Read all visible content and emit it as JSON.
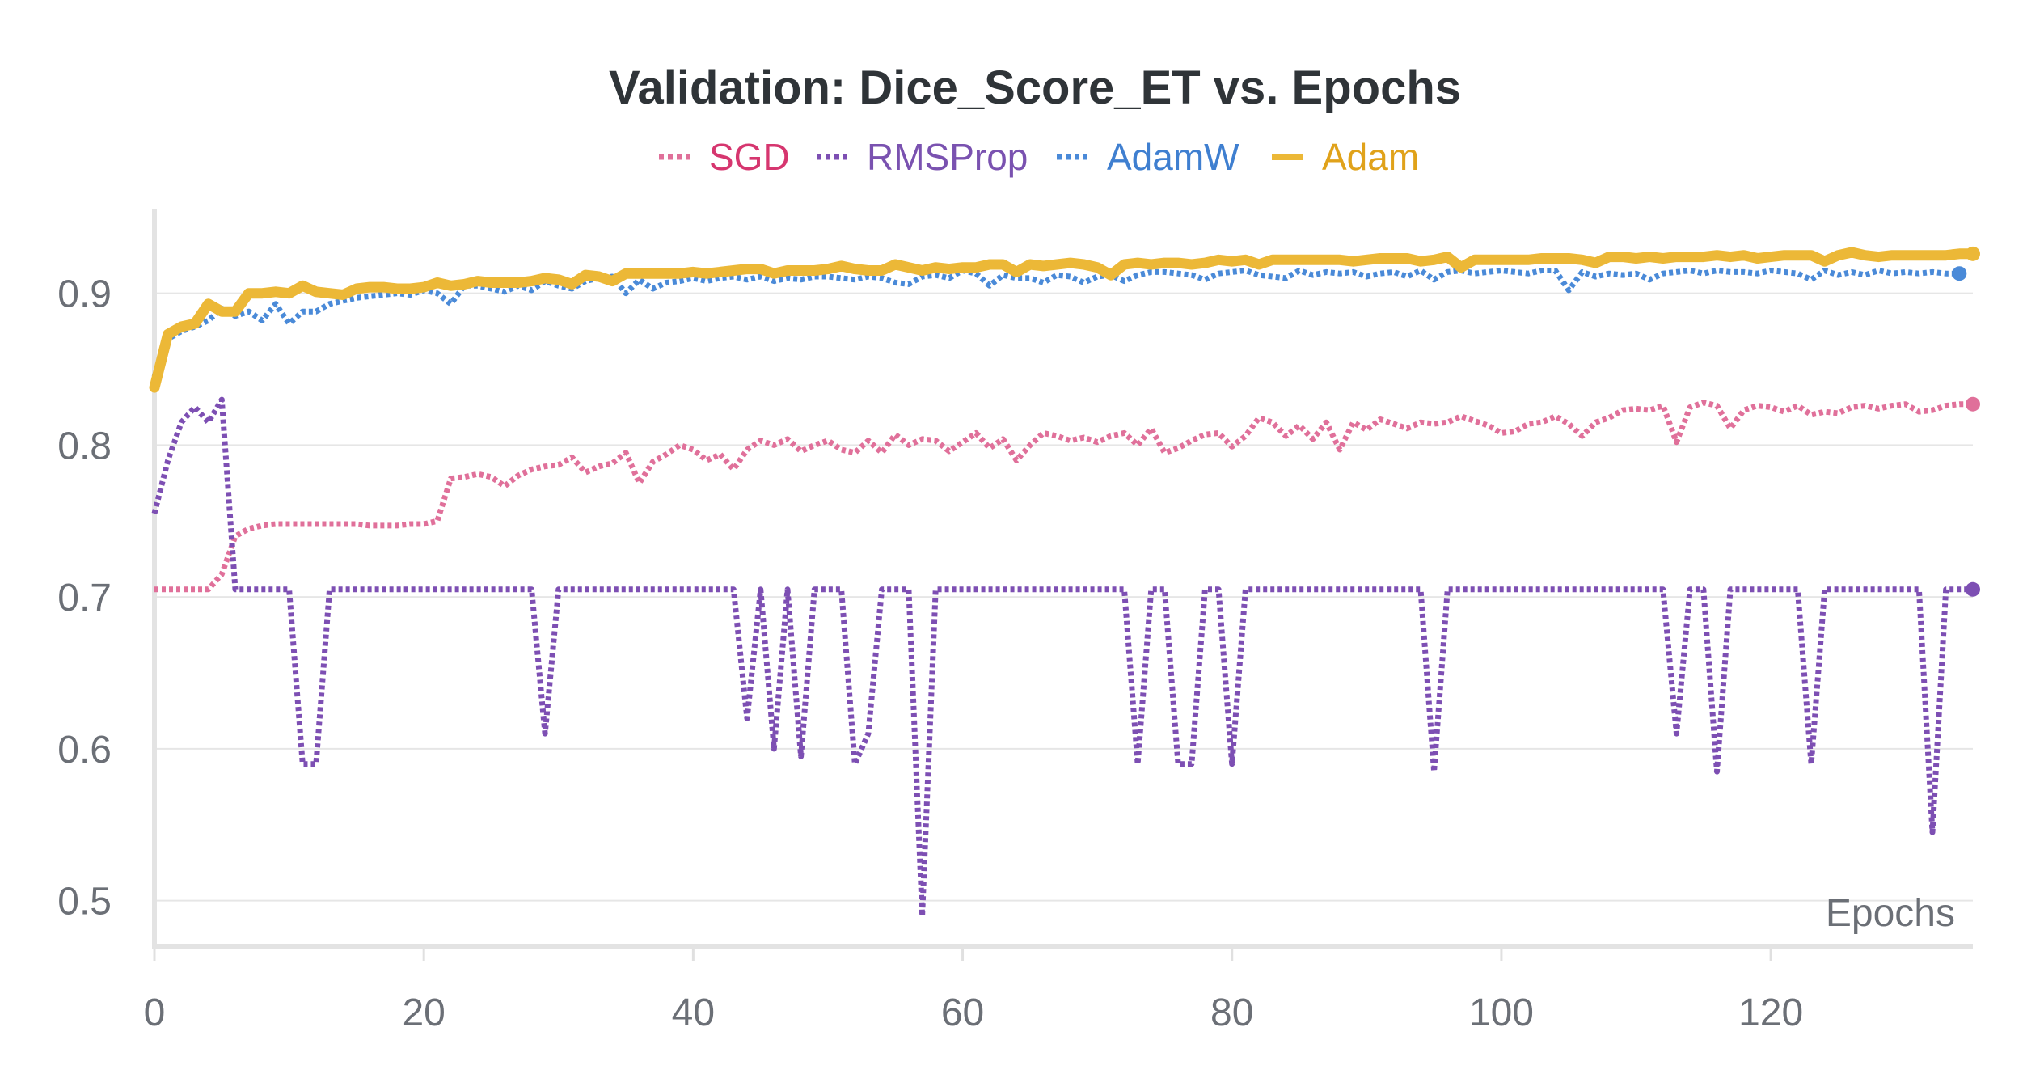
{
  "chart_data": {
    "type": "line",
    "title": "Validation: Dice_Score_ET vs. Epochs",
    "xlabel": "Epochs",
    "ylabel": "",
    "xlim": [
      0,
      135
    ],
    "ylim": [
      0.47,
      0.96
    ],
    "x_ticks": [
      0,
      20,
      40,
      60,
      80,
      100,
      120
    ],
    "y_ticks": [
      0.5,
      0.6,
      0.7,
      0.8,
      0.9
    ],
    "y_tick_labels": [
      "0.5",
      "0.6",
      "0.7",
      "0.8",
      "0.9"
    ],
    "legend_position": "top-center",
    "grid": "horizontal",
    "series": [
      {
        "name": "SGD",
        "color": "#e0709a",
        "label_color": "#d6366f",
        "style": "dotted",
        "values": [
          0.705,
          0.705,
          0.705,
          0.705,
          0.705,
          0.715,
          0.74,
          0.745,
          0.747,
          0.748,
          0.748,
          0.748,
          0.748,
          0.748,
          0.748,
          0.748,
          0.747,
          0.747,
          0.747,
          0.748,
          0.748,
          0.75,
          0.778,
          0.779,
          0.781,
          0.779,
          0.773,
          0.78,
          0.784,
          0.786,
          0.787,
          0.792,
          0.782,
          0.786,
          0.788,
          0.795,
          0.775,
          0.789,
          0.794,
          0.8,
          0.797,
          0.79,
          0.794,
          0.784,
          0.797,
          0.803,
          0.8,
          0.804,
          0.796,
          0.8,
          0.803,
          0.797,
          0.795,
          0.803,
          0.795,
          0.807,
          0.8,
          0.804,
          0.803,
          0.796,
          0.802,
          0.808,
          0.798,
          0.804,
          0.79,
          0.8,
          0.808,
          0.806,
          0.803,
          0.805,
          0.802,
          0.806,
          0.808,
          0.8,
          0.811,
          0.795,
          0.798,
          0.803,
          0.807,
          0.808,
          0.799,
          0.806,
          0.818,
          0.815,
          0.806,
          0.813,
          0.804,
          0.815,
          0.797,
          0.815,
          0.81,
          0.817,
          0.814,
          0.811,
          0.815,
          0.814,
          0.815,
          0.819,
          0.816,
          0.813,
          0.808,
          0.809,
          0.814,
          0.815,
          0.819,
          0.814,
          0.806,
          0.815,
          0.818,
          0.823,
          0.824,
          0.823,
          0.826,
          0.802,
          0.825,
          0.828,
          0.826,
          0.811,
          0.823,
          0.826,
          0.825,
          0.822,
          0.826,
          0.82,
          0.822,
          0.821,
          0.825,
          0.826,
          0.824,
          0.826,
          0.827,
          0.822,
          0.823,
          0.826,
          0.827,
          0.827
        ]
      },
      {
        "name": "RMSProp",
        "color": "#7d4fb3",
        "label_color": "#7a52b0",
        "style": "dotted",
        "values": [
          0.755,
          0.79,
          0.815,
          0.825,
          0.815,
          0.83,
          0.705,
          0.705,
          0.705,
          0.705,
          0.705,
          0.59,
          0.59,
          0.705,
          0.705,
          0.705,
          0.705,
          0.705,
          0.705,
          0.705,
          0.705,
          0.705,
          0.705,
          0.705,
          0.705,
          0.705,
          0.705,
          0.705,
          0.705,
          0.61,
          0.705,
          0.705,
          0.705,
          0.705,
          0.705,
          0.705,
          0.705,
          0.705,
          0.705,
          0.705,
          0.705,
          0.705,
          0.705,
          0.705,
          0.62,
          0.705,
          0.6,
          0.705,
          0.595,
          0.705,
          0.705,
          0.705,
          0.59,
          0.61,
          0.705,
          0.705,
          0.705,
          0.49,
          0.705,
          0.705,
          0.705,
          0.705,
          0.705,
          0.705,
          0.705,
          0.705,
          0.705,
          0.705,
          0.705,
          0.705,
          0.705,
          0.705,
          0.705,
          0.59,
          0.705,
          0.705,
          0.59,
          0.59,
          0.705,
          0.705,
          0.59,
          0.705,
          0.705,
          0.705,
          0.705,
          0.705,
          0.705,
          0.705,
          0.705,
          0.705,
          0.705,
          0.705,
          0.705,
          0.705,
          0.705,
          0.585,
          0.705,
          0.705,
          0.705,
          0.705,
          0.705,
          0.705,
          0.705,
          0.705,
          0.705,
          0.705,
          0.705,
          0.705,
          0.705,
          0.705,
          0.705,
          0.705,
          0.705,
          0.61,
          0.705,
          0.705,
          0.585,
          0.705,
          0.705,
          0.705,
          0.705,
          0.705,
          0.705,
          0.59,
          0.705,
          0.705,
          0.705,
          0.705,
          0.705,
          0.705,
          0.705,
          0.705,
          0.545,
          0.705,
          0.705,
          0.705
        ]
      },
      {
        "name": "AdamW",
        "color": "#4a8ad8",
        "label_color": "#3f7fd0",
        "style": "dotted",
        "values": [
          0.845,
          0.87,
          0.875,
          0.878,
          0.882,
          0.89,
          0.885,
          0.888,
          0.882,
          0.893,
          0.88,
          0.888,
          0.888,
          0.893,
          0.895,
          0.897,
          0.898,
          0.899,
          0.9,
          0.899,
          0.902,
          0.9,
          0.893,
          0.905,
          0.905,
          0.903,
          0.901,
          0.905,
          0.902,
          0.908,
          0.905,
          0.903,
          0.908,
          0.91,
          0.911,
          0.9,
          0.909,
          0.903,
          0.907,
          0.908,
          0.91,
          0.908,
          0.91,
          0.911,
          0.909,
          0.911,
          0.908,
          0.91,
          0.909,
          0.911,
          0.911,
          0.91,
          0.909,
          0.911,
          0.91,
          0.907,
          0.906,
          0.911,
          0.912,
          0.91,
          0.915,
          0.913,
          0.905,
          0.912,
          0.91,
          0.91,
          0.907,
          0.912,
          0.911,
          0.907,
          0.911,
          0.912,
          0.908,
          0.912,
          0.914,
          0.914,
          0.913,
          0.912,
          0.909,
          0.913,
          0.914,
          0.915,
          0.912,
          0.911,
          0.91,
          0.915,
          0.912,
          0.914,
          0.913,
          0.914,
          0.911,
          0.913,
          0.914,
          0.911,
          0.915,
          0.909,
          0.914,
          0.915,
          0.913,
          0.914,
          0.915,
          0.914,
          0.913,
          0.915,
          0.915,
          0.902,
          0.914,
          0.911,
          0.913,
          0.912,
          0.913,
          0.909,
          0.913,
          0.914,
          0.915,
          0.913,
          0.915,
          0.914,
          0.914,
          0.913,
          0.915,
          0.914,
          0.913,
          0.909,
          0.915,
          0.912,
          0.914,
          0.912,
          0.915,
          0.913,
          0.914,
          0.913,
          0.914,
          0.913,
          0.913
        ]
      },
      {
        "name": "Adam",
        "color": "#ecb837",
        "label_color": "#e0a21a",
        "style": "solid",
        "values": [
          0.838,
          0.873,
          0.878,
          0.88,
          0.893,
          0.888,
          0.888,
          0.9,
          0.9,
          0.901,
          0.9,
          0.905,
          0.901,
          0.9,
          0.899,
          0.903,
          0.904,
          0.904,
          0.903,
          0.903,
          0.904,
          0.907,
          0.905,
          0.906,
          0.908,
          0.907,
          0.907,
          0.907,
          0.908,
          0.91,
          0.909,
          0.906,
          0.912,
          0.911,
          0.908,
          0.913,
          0.913,
          0.913,
          0.913,
          0.913,
          0.914,
          0.913,
          0.914,
          0.915,
          0.916,
          0.916,
          0.913,
          0.915,
          0.915,
          0.915,
          0.916,
          0.918,
          0.916,
          0.915,
          0.915,
          0.919,
          0.917,
          0.915,
          0.917,
          0.916,
          0.917,
          0.917,
          0.919,
          0.919,
          0.914,
          0.919,
          0.918,
          0.919,
          0.92,
          0.919,
          0.917,
          0.912,
          0.919,
          0.92,
          0.919,
          0.92,
          0.92,
          0.919,
          0.92,
          0.922,
          0.921,
          0.922,
          0.919,
          0.922,
          0.922,
          0.922,
          0.922,
          0.922,
          0.922,
          0.921,
          0.922,
          0.923,
          0.923,
          0.923,
          0.921,
          0.922,
          0.924,
          0.917,
          0.922,
          0.922,
          0.922,
          0.922,
          0.922,
          0.923,
          0.923,
          0.923,
          0.922,
          0.92,
          0.924,
          0.924,
          0.923,
          0.924,
          0.923,
          0.924,
          0.924,
          0.924,
          0.925,
          0.924,
          0.925,
          0.923,
          0.924,
          0.925,
          0.925,
          0.925,
          0.921,
          0.925,
          0.927,
          0.925,
          0.924,
          0.925,
          0.925,
          0.925,
          0.925,
          0.925,
          0.926,
          0.926
        ]
      }
    ]
  }
}
